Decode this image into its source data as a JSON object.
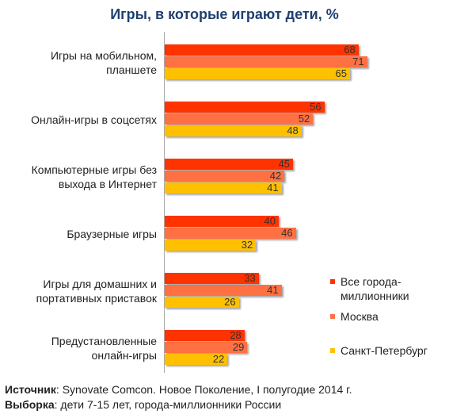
{
  "chart_data": {
    "type": "bar",
    "orientation": "horizontal",
    "title": "Игры, в которые играют дети, %",
    "categories": [
      "Игры на мобильном,\nпланшете",
      "Онлайн-игры в соцсетях",
      "Компьютерные игры без\nвыхода в Интернет",
      "Браузерные игры",
      "Игры для домашних и\nпортативных приставок",
      "Предустановленные\nонлайн-игры"
    ],
    "series": [
      {
        "name": "Все города-\nмиллионники",
        "color": "#ff3300",
        "values": [
          68,
          56,
          45,
          40,
          33,
          28
        ]
      },
      {
        "name": "Москва",
        "color": "#ff7043",
        "values": [
          71,
          52,
          42,
          46,
          41,
          29
        ]
      },
      {
        "name": "Санкт-Петербург",
        "color": "#ffc000",
        "values": [
          65,
          48,
          41,
          32,
          26,
          22
        ]
      }
    ],
    "legend": "right"
  },
  "footer": [
    {
      "label": "Источник",
      "text": ": Synovate Comcon. Новое Поколение, I полугодие 2014 г."
    },
    {
      "label": "Выборка",
      "text": ": дети 7-15 лет, города-миллионники России"
    }
  ]
}
